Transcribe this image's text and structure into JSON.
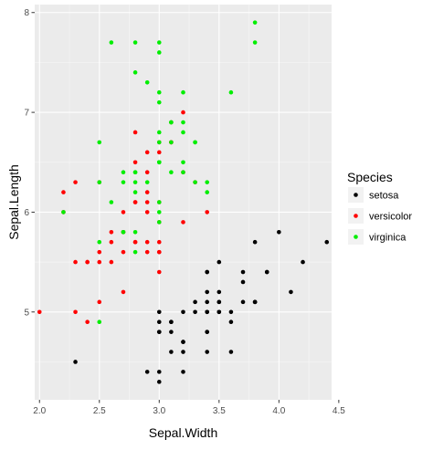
{
  "chart_data": {
    "type": "scatter",
    "title": "",
    "xlabel": "Sepal.Width",
    "ylabel": "Sepal.Length",
    "xlim": [
      1.96,
      4.44
    ],
    "ylim": [
      4.12,
      8.08
    ],
    "xticks": [
      2.0,
      2.5,
      3.0,
      3.5,
      4.0,
      4.5
    ],
    "xtick_labels": [
      "2.0",
      "2.5",
      "3.0",
      "3.5",
      "4.0",
      "4.5"
    ],
    "yticks": [
      5,
      6,
      7,
      8
    ],
    "ytick_labels": [
      "5",
      "6",
      "7",
      "8"
    ],
    "grid": true,
    "panel_background": "#EBEBEB",
    "legend": {
      "title": "Species",
      "placement": "right"
    },
    "series": [
      {
        "name": "setosa",
        "color": "#000000",
        "points": [
          [
            3.5,
            5.1
          ],
          [
            3.0,
            4.9
          ],
          [
            3.2,
            4.7
          ],
          [
            3.1,
            4.6
          ],
          [
            3.6,
            5.0
          ],
          [
            3.9,
            5.4
          ],
          [
            3.4,
            4.6
          ],
          [
            3.4,
            5.0
          ],
          [
            2.9,
            4.4
          ],
          [
            3.1,
            4.9
          ],
          [
            3.7,
            5.4
          ],
          [
            3.4,
            4.8
          ],
          [
            3.0,
            4.8
          ],
          [
            3.0,
            4.3
          ],
          [
            4.0,
            5.8
          ],
          [
            4.4,
            5.7
          ],
          [
            3.9,
            5.4
          ],
          [
            3.5,
            5.1
          ],
          [
            3.8,
            5.7
          ],
          [
            3.8,
            5.1
          ],
          [
            3.4,
            5.4
          ],
          [
            3.7,
            5.1
          ],
          [
            3.6,
            4.6
          ],
          [
            3.3,
            5.1
          ],
          [
            3.4,
            4.8
          ],
          [
            3.0,
            5.0
          ],
          [
            3.4,
            5.0
          ],
          [
            3.5,
            5.2
          ],
          [
            3.4,
            5.2
          ],
          [
            3.2,
            4.7
          ],
          [
            3.1,
            4.8
          ],
          [
            3.4,
            5.4
          ],
          [
            4.1,
            5.2
          ],
          [
            4.2,
            5.5
          ],
          [
            3.1,
            4.9
          ],
          [
            3.2,
            5.0
          ],
          [
            3.5,
            5.5
          ],
          [
            3.6,
            4.9
          ],
          [
            3.0,
            4.4
          ],
          [
            3.4,
            5.1
          ],
          [
            3.5,
            5.0
          ],
          [
            2.3,
            4.5
          ],
          [
            3.2,
            4.4
          ],
          [
            3.5,
            5.0
          ],
          [
            3.8,
            5.1
          ],
          [
            3.0,
            4.8
          ],
          [
            3.8,
            5.1
          ],
          [
            3.2,
            4.6
          ],
          [
            3.7,
            5.3
          ],
          [
            3.3,
            5.0
          ]
        ]
      },
      {
        "name": "versicolor",
        "color": "#FF0000",
        "points": [
          [
            3.2,
            7.0
          ],
          [
            3.2,
            6.4
          ],
          [
            3.1,
            6.9
          ],
          [
            2.3,
            5.5
          ],
          [
            2.8,
            6.5
          ],
          [
            2.8,
            5.7
          ],
          [
            3.3,
            6.3
          ],
          [
            2.4,
            4.9
          ],
          [
            2.9,
            6.6
          ],
          [
            2.7,
            5.2
          ],
          [
            2.0,
            5.0
          ],
          [
            3.0,
            5.9
          ],
          [
            2.2,
            6.0
          ],
          [
            2.9,
            6.1
          ],
          [
            2.9,
            5.6
          ],
          [
            3.1,
            6.7
          ],
          [
            3.0,
            5.6
          ],
          [
            2.7,
            5.8
          ],
          [
            2.2,
            6.2
          ],
          [
            2.5,
            5.6
          ],
          [
            3.2,
            5.9
          ],
          [
            2.8,
            6.1
          ],
          [
            2.5,
            6.3
          ],
          [
            2.8,
            6.1
          ],
          [
            2.9,
            6.4
          ],
          [
            3.0,
            6.6
          ],
          [
            2.8,
            6.8
          ],
          [
            3.0,
            6.7
          ],
          [
            2.9,
            6.0
          ],
          [
            2.6,
            5.7
          ],
          [
            2.4,
            5.5
          ],
          [
            2.4,
            5.5
          ],
          [
            2.7,
            5.8
          ],
          [
            2.7,
            6.0
          ],
          [
            3.0,
            5.4
          ],
          [
            3.4,
            6.0
          ],
          [
            3.1,
            6.7
          ],
          [
            2.3,
            6.3
          ],
          [
            3.0,
            5.6
          ],
          [
            2.5,
            5.5
          ],
          [
            2.6,
            5.5
          ],
          [
            3.0,
            6.1
          ],
          [
            2.6,
            5.8
          ],
          [
            2.3,
            5.0
          ],
          [
            2.7,
            5.6
          ],
          [
            3.0,
            5.7
          ],
          [
            2.9,
            5.7
          ],
          [
            2.9,
            6.2
          ],
          [
            2.5,
            5.1
          ],
          [
            2.8,
            5.7
          ]
        ]
      },
      {
        "name": "virginica",
        "color": "#00EE00",
        "points": [
          [
            3.3,
            6.3
          ],
          [
            2.7,
            5.8
          ],
          [
            3.0,
            7.1
          ],
          [
            2.9,
            6.3
          ],
          [
            3.0,
            6.5
          ],
          [
            3.0,
            7.6
          ],
          [
            2.5,
            4.9
          ],
          [
            2.9,
            7.3
          ],
          [
            2.5,
            6.7
          ],
          [
            3.6,
            7.2
          ],
          [
            3.2,
            6.5
          ],
          [
            2.7,
            6.4
          ],
          [
            3.0,
            6.8
          ],
          [
            2.5,
            5.7
          ],
          [
            2.8,
            5.8
          ],
          [
            3.2,
            6.4
          ],
          [
            3.0,
            6.5
          ],
          [
            3.8,
            7.7
          ],
          [
            2.6,
            7.7
          ],
          [
            2.2,
            6.0
          ],
          [
            3.2,
            6.9
          ],
          [
            2.8,
            5.6
          ],
          [
            2.8,
            7.7
          ],
          [
            2.7,
            6.3
          ],
          [
            3.3,
            6.7
          ],
          [
            3.2,
            7.2
          ],
          [
            2.8,
            6.2
          ],
          [
            3.0,
            6.1
          ],
          [
            2.8,
            6.4
          ],
          [
            3.0,
            7.2
          ],
          [
            2.8,
            7.4
          ],
          [
            3.8,
            7.9
          ],
          [
            2.8,
            6.4
          ],
          [
            2.8,
            6.3
          ],
          [
            2.6,
            6.1
          ],
          [
            3.0,
            7.7
          ],
          [
            3.4,
            6.3
          ],
          [
            3.1,
            6.4
          ],
          [
            3.0,
            6.0
          ],
          [
            3.1,
            6.9
          ],
          [
            3.1,
            6.7
          ],
          [
            3.1,
            6.9
          ],
          [
            2.7,
            5.8
          ],
          [
            3.2,
            6.8
          ],
          [
            3.3,
            6.7
          ],
          [
            3.0,
            6.7
          ],
          [
            2.5,
            6.3
          ],
          [
            3.0,
            6.5
          ],
          [
            3.4,
            6.2
          ],
          [
            3.0,
            5.9
          ]
        ]
      }
    ]
  }
}
